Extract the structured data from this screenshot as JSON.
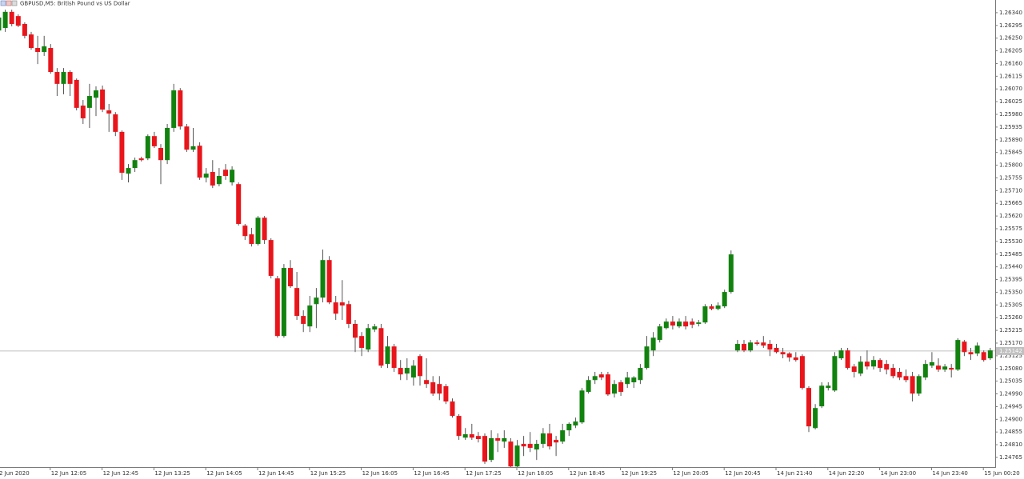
{
  "chart_data": {
    "type": "candlestick",
    "title": "GBPUSD,M5: British Pound vs US Dollar",
    "up_color": "#12820f",
    "down_color": "#e8151b",
    "wick_color": "#555555",
    "current_price": 1.25142,
    "ylim": [
      1.24731,
      1.26385
    ],
    "yticks": [
      {
        "value": 1.2634,
        "label": "1.26340"
      },
      1.26295,
      {
        "value": 1.2625,
        "label": "1.26250"
      },
      1.26205,
      {
        "value": 1.2616,
        "label": "1.26160"
      },
      1.26115,
      {
        "value": 1.2607,
        "label": "1.26070"
      },
      1.26025,
      {
        "value": 1.2598,
        "label": "1.25980"
      },
      1.25935,
      {
        "value": 1.2589,
        "label": "1.25890"
      },
      1.25845,
      {
        "value": 1.258,
        "label": "1.25800"
      },
      1.25755,
      {
        "value": 1.2571,
        "label": "1.25710"
      },
      1.25665,
      {
        "value": 1.2562,
        "label": "1.25620"
      },
      1.25575,
      {
        "value": 1.2553,
        "label": "1.25530"
      },
      1.25485,
      {
        "value": 1.2544,
        "label": "1.25440"
      },
      1.25395,
      {
        "value": 1.2535,
        "label": "1.25350"
      },
      1.25305,
      {
        "value": 1.2526,
        "label": "1.25260"
      },
      1.25215,
      {
        "value": 1.2517,
        "label": "1.25170"
      },
      1.25125,
      {
        "value": 1.2508,
        "label": "1.25080"
      },
      1.25035,
      {
        "value": 1.2499,
        "label": "1.24990"
      },
      1.24945,
      {
        "value": 1.249,
        "label": "1.24900"
      },
      1.24855,
      {
        "value": 1.2481,
        "label": "1.24810"
      },
      1.24765
    ],
    "categories": [
      "2 Jun 2020",
      null,
      null,
      null,
      null,
      null,
      null,
      null,
      "12 Jun 12:05",
      null,
      null,
      null,
      null,
      null,
      null,
      null,
      "12 Jun 12:45",
      null,
      null,
      null,
      null,
      null,
      null,
      null,
      "12 Jun 13:25",
      null,
      null,
      null,
      null,
      null,
      null,
      null,
      "12 Jun 14:05",
      null,
      null,
      null,
      null,
      null,
      null,
      null,
      "12 Jun 14:45",
      null,
      null,
      null,
      null,
      null,
      null,
      null,
      "12 Jun 15:25",
      null,
      null,
      null,
      null,
      null,
      null,
      null,
      "12 Jun 16:05",
      null,
      null,
      null,
      null,
      null,
      null,
      null,
      "12 Jun 16:45",
      null,
      null,
      null,
      null,
      null,
      null,
      null,
      "12 Jun 17:25",
      null,
      null,
      null,
      null,
      null,
      null,
      null,
      "12 Jun 18:05",
      null,
      null,
      null,
      null,
      null,
      null,
      null,
      "12 Jun 18:45",
      null,
      null,
      null,
      null,
      null,
      null,
      null,
      "12 Jun 19:25",
      null,
      null,
      null,
      null,
      null,
      null,
      null,
      "12 Jun 20:05",
      null,
      null,
      null,
      null,
      null,
      null,
      null,
      "12 Jun 20:45",
      null,
      null,
      null,
      null,
      null,
      null,
      null,
      "14 Jun 21:40",
      null,
      null,
      null,
      null,
      null,
      null,
      null,
      "14 Jun 22:20",
      null,
      null,
      null,
      null,
      null,
      null,
      null,
      "14 Jun 23:00",
      null,
      null,
      null,
      null,
      null,
      null,
      null,
      "14 Jun 23:40",
      null,
      null,
      null,
      null,
      null,
      null,
      null,
      "15 Jun 00:20",
      null
    ],
    "open": [
      1.26277,
      1.26286,
      1.26343,
      1.26328,
      1.263,
      1.26263,
      1.26215,
      1.26201,
      1.26215,
      1.2613,
      1.26088,
      1.2613,
      1.26102,
      1.26011,
      1.26003,
      1.26039,
      1.26068,
      1.25994,
      1.2598,
      1.25918,
      1.2577,
      1.2579,
      1.25824,
      1.25824,
      1.25903,
      1.25861,
      1.25818,
      1.25932,
      1.26065,
      1.25937,
      1.25855,
      1.25869,
      1.25756,
      1.25776,
      1.25733,
      1.25784,
      1.25739,
      1.25733,
      1.25586,
      1.25555,
      1.25521,
      1.25614,
      1.25535,
      1.25399,
      1.25195,
      1.25436,
      1.25365,
      1.25266,
      1.25229,
      1.25308,
      1.25331,
      1.25464,
      1.25314,
      1.25314,
      1.25308,
      1.25238,
      1.25195,
      1.25147,
      1.25218,
      1.25223,
      1.25096,
      1.25158,
      1.25082,
      1.25062,
      1.25048,
      1.25124,
      1.25039,
      1.25031,
      1.25025,
      1.25017,
      1.24963,
      1.24912,
      1.24835,
      1.24847,
      1.24841,
      1.24841,
      1.24756,
      1.24833,
      1.24821,
      1.24821,
      1.24733,
      1.24813,
      1.24813,
      1.24793,
      1.24813,
      1.2485,
      1.24827,
      1.24821,
      1.24861,
      1.24878,
      1.24889,
      1.24997,
      1.25039,
      1.25059,
      1.25059,
      1.24991,
      1.25031,
      1.25025,
      1.25031,
      1.25039,
      1.25082,
      1.25144,
      1.25181,
      1.25223,
      1.25246,
      1.25229,
      1.25246,
      1.25246,
      1.25238,
      1.25243,
      1.253,
      1.25291,
      1.253,
      1.25351,
      1.25144,
      1.25167,
      1.25144,
      1.25172,
      1.25172,
      1.25167,
      1.25153,
      1.25138,
      1.25133,
      1.25119,
      1.25124,
      1.25011,
      1.24869,
      1.24946,
      1.25011,
      1.25002,
      1.25116,
      1.25144,
      1.25087,
      1.25062,
      1.25104,
      1.25087,
      1.2511,
      1.25096,
      1.25082,
      1.25068,
      1.25053,
      1.25053,
      1.24991,
      1.25048,
      1.2509,
      1.2509,
      1.25076,
      1.25082,
      1.25076,
      1.25175,
      1.25138,
      1.25133,
      1.25138,
      1.25116
    ],
    "high": [
      1.26334,
      1.26351,
      1.26351,
      1.26334,
      1.26306,
      1.26272,
      1.26258,
      1.26258,
      1.26229,
      1.26144,
      1.26144,
      1.26136,
      1.26107,
      1.26031,
      1.26088,
      1.26079,
      1.26082,
      1.26017,
      1.25988,
      1.25923,
      1.25804,
      1.25827,
      1.2583,
      1.25909,
      1.25918,
      1.25875,
      1.25946,
      1.26088,
      1.26073,
      1.25946,
      1.25932,
      1.25881,
      1.2579,
      1.25818,
      1.2579,
      1.25804,
      1.25796,
      1.25739,
      1.25592,
      1.25578,
      1.2562,
      1.2562,
      1.25541,
      1.25408,
      1.2545,
      1.25464,
      1.25422,
      1.25286,
      1.25337,
      1.25365,
      1.25501,
      1.25478,
      1.25337,
      1.25393,
      1.2532,
      1.25252,
      1.25209,
      1.25238,
      1.25238,
      1.25238,
      1.25195,
      1.25167,
      1.2511,
      1.25116,
      1.2511,
      1.2513,
      1.25116,
      1.25053,
      1.25053,
      1.25025,
      1.24974,
      1.24918,
      1.24869,
      1.24884,
      1.24855,
      1.2485,
      1.24861,
      1.2485,
      1.24861,
      1.24833,
      1.24827,
      1.24841,
      1.24855,
      1.24827,
      1.24869,
      1.24884,
      1.24841,
      1.24884,
      1.24889,
      1.24906,
      1.25011,
      1.25053,
      1.25068,
      1.25068,
      1.25068,
      1.25039,
      1.25039,
      1.25068,
      1.25053,
      1.25096,
      1.25195,
      1.25209,
      1.25238,
      1.25257,
      1.25266,
      1.25257,
      1.25266,
      1.25257,
      1.25252,
      1.25308,
      1.25308,
      1.25314,
      1.25359,
      1.25498,
      1.25181,
      1.25181,
      1.25181,
      1.25181,
      1.25195,
      1.25181,
      1.25167,
      1.25153,
      1.25138,
      1.25138,
      1.2513,
      1.25017,
      1.24954,
      1.25031,
      1.25031,
      1.25138,
      1.25153,
      1.25153,
      1.25096,
      1.25124,
      1.25144,
      1.25124,
      1.25116,
      1.2511,
      1.25096,
      1.25082,
      1.25076,
      1.25068,
      1.25059,
      1.2511,
      1.25138,
      1.25116,
      1.25096,
      1.25096,
      1.25187,
      1.25181,
      1.25153,
      1.25172,
      1.25144,
      1.25153
    ],
    "low": [
      1.26266,
      1.26272,
      1.26292,
      1.26289,
      1.26249,
      1.26209,
      1.26158,
      1.26187,
      1.26124,
      1.26045,
      1.26051,
      1.26045,
      1.25994,
      1.25946,
      1.25932,
      1.25974,
      1.25988,
      1.25918,
      1.25903,
      1.25748,
      1.25739,
      1.25776,
      1.25813,
      1.25818,
      1.25861,
      1.25733,
      1.25804,
      1.25918,
      1.25926,
      1.25847,
      1.25847,
      1.25748,
      1.25739,
      1.25719,
      1.25725,
      1.25748,
      1.25728,
      1.25586,
      1.25535,
      1.25512,
      1.25515,
      1.25521,
      1.25399,
      1.25189,
      1.25189,
      1.25365,
      1.25252,
      1.25209,
      1.25209,
      1.25223,
      1.25314,
      1.25308,
      1.25252,
      1.25252,
      1.25223,
      1.25138,
      1.25124,
      1.25138,
      1.25209,
      1.25082,
      1.25082,
      1.25068,
      1.25039,
      1.25039,
      1.25019,
      1.25019,
      1.25011,
      1.24983,
      1.24968,
      1.24954,
      1.24906,
      1.24827,
      1.24827,
      1.24827,
      1.24818,
      1.24742,
      1.24748,
      1.24784,
      1.24799,
      1.24728,
      1.24728,
      1.2477,
      1.24784,
      1.24756,
      1.24799,
      1.24793,
      1.2477,
      1.24813,
      1.24841,
      1.24869,
      1.24884,
      1.24991,
      1.25025,
      1.25039,
      1.24983,
      1.24977,
      1.24983,
      1.25011,
      1.25011,
      1.25025,
      1.25076,
      1.25124,
      1.25172,
      1.25218,
      1.25218,
      1.25223,
      1.25218,
      1.25223,
      1.25229,
      1.25238,
      1.25286,
      1.25286,
      1.25294,
      1.25345,
      1.25138,
      1.25138,
      1.25138,
      1.25161,
      1.25153,
      1.25124,
      1.25133,
      1.25116,
      1.25104,
      1.25104,
      1.25005,
      1.24855,
      1.24864,
      1.2494,
      1.25002,
      1.24997,
      1.2511,
      1.25076,
      1.25048,
      1.25053,
      1.25076,
      1.25076,
      1.25068,
      1.25059,
      1.25045,
      1.25039,
      1.25031,
      1.24963,
      1.24983,
      1.25039,
      1.25082,
      1.25068,
      1.25068,
      1.25048,
      1.25071,
      1.25124,
      1.2511,
      1.25124,
      1.25104,
      1.2511
    ],
    "close": [
      1.26323,
      1.26343,
      1.263,
      1.26294,
      1.26258,
      1.26215,
      1.26201,
      1.26221,
      1.2613,
      1.26088,
      1.2613,
      1.26088,
      1.26003,
      1.25966,
      1.26045,
      1.26065,
      1.25997,
      1.25983,
      1.25918,
      1.25773,
      1.2579,
      1.25818,
      1.25818,
      1.25903,
      1.25867,
      1.25818,
      1.25932,
      1.26065,
      1.25937,
      1.25855,
      1.25867,
      1.25756,
      1.2577,
      1.25728,
      1.25762,
      1.25762,
      1.25784,
      1.25592,
      1.25549,
      1.25521,
      1.25614,
      1.25535,
      1.25408,
      1.25195,
      1.25436,
      1.25371,
      1.25266,
      1.25238,
      1.25303,
      1.25331,
      1.25464,
      1.25314,
      1.25274,
      1.25303,
      1.25238,
      1.25189,
      1.25153,
      1.25223,
      1.25229,
      1.2509,
      1.25158,
      1.25082,
      1.25059,
      1.25082,
      1.2509,
      1.25053,
      1.25025,
      1.24991,
      1.24991,
      1.24963,
      1.24912,
      1.24841,
      1.24847,
      1.24835,
      1.2483,
      1.2475,
      1.24833,
      1.24824,
      1.24833,
      1.24733,
      1.24807,
      1.24804,
      1.24799,
      1.24813,
      1.2485,
      1.24804,
      1.24818,
      1.24861,
      1.24884,
      1.24892,
      1.25002,
      1.25039,
      1.25053,
      1.25048,
      1.24988,
      1.25025,
      1.24997,
      1.25048,
      1.25048,
      1.25082,
      1.25158,
      1.25189,
      1.25229,
      1.25246,
      1.25232,
      1.25246,
      1.25229,
      1.25235,
      1.25243,
      1.253,
      1.25291,
      1.25303,
      1.25351,
      1.25484,
      1.25167,
      1.25144,
      1.25172,
      1.25167,
      1.25161,
      1.25147,
      1.25138,
      1.2513,
      1.25119,
      1.2511,
      1.25011,
      1.24875,
      1.2494,
      1.25019,
      1.25019,
      1.25124,
      1.25144,
      1.25082,
      1.25068,
      1.25104,
      1.25087,
      1.2511,
      1.25082,
      1.25076,
      1.25053,
      1.25048,
      1.25039,
      1.24991,
      1.25053,
      1.25096,
      1.25102,
      1.25076,
      1.25087,
      1.25076,
      1.25181,
      1.25138,
      1.2513,
      1.25161,
      1.2511,
      1.25144
    ]
  }
}
